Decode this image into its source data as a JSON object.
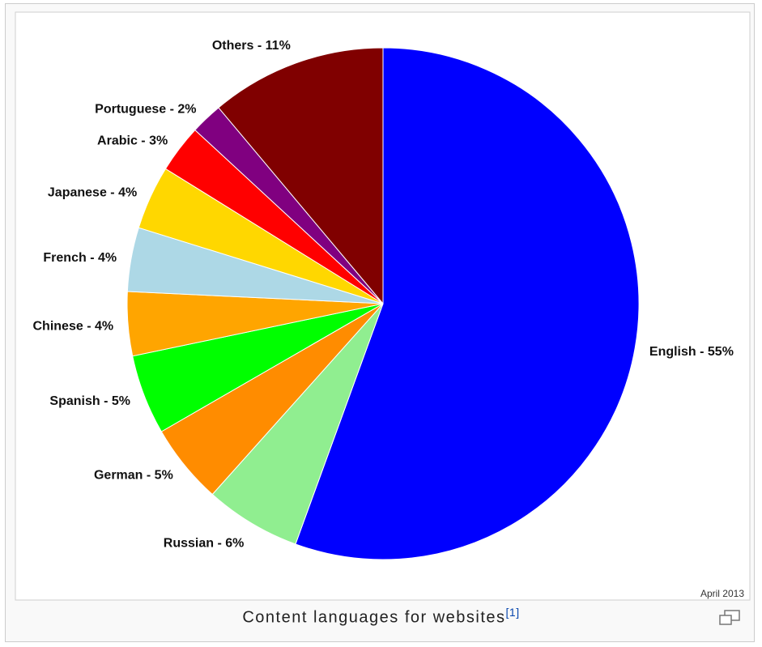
{
  "chart_data": {
    "type": "pie",
    "title": "",
    "slices": [
      {
        "label": "English - 55%",
        "value": 55,
        "color": "#0000ff"
      },
      {
        "label": "Russian - 6%",
        "value": 6,
        "color": "#90ee90"
      },
      {
        "label": "German - 5%",
        "value": 5,
        "color": "#ff8c00"
      },
      {
        "label": "Spanish - 5%",
        "value": 5,
        "color": "#00ff00"
      },
      {
        "label": "Chinese - 4%",
        "value": 4,
        "color": "#ffa500"
      },
      {
        "label": "French - 4%",
        "value": 4,
        "color": "#add8e6"
      },
      {
        "label": "Japanese - 4%",
        "value": 4,
        "color": "#ffd700"
      },
      {
        "label": "Arabic - 3%",
        "value": 3,
        "color": "#ff0000"
      },
      {
        "label": "Portuguese - 2%",
        "value": 2,
        "color": "#800080"
      },
      {
        "label": "Others - 11%",
        "value": 11,
        "color": "#800000"
      }
    ],
    "date_note": "April 2013"
  },
  "caption": {
    "text": "Content languages for websites",
    "ref": "[1]"
  },
  "icons": {
    "enlarge": "magnify-icon"
  }
}
